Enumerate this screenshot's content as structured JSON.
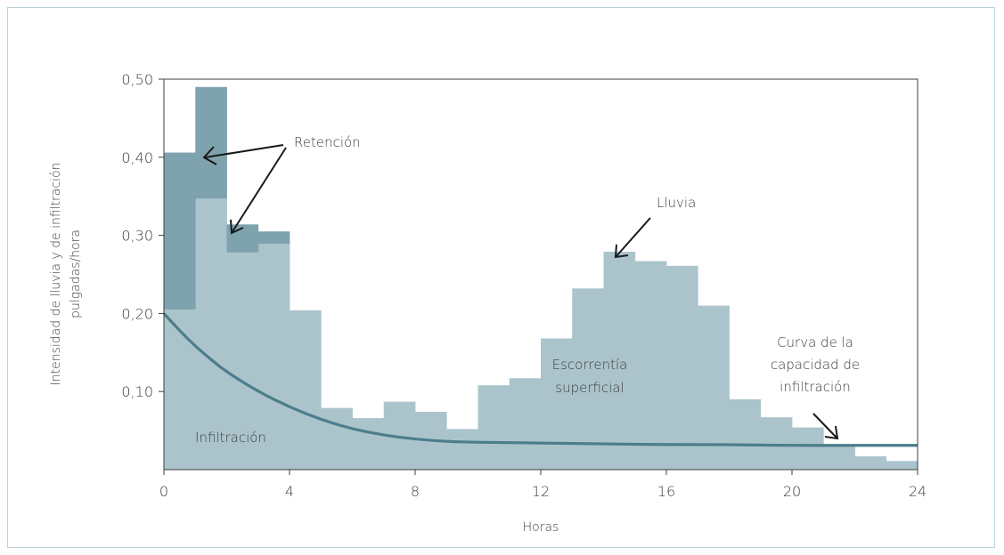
{
  "chart_data": {
    "type": "bar",
    "ylabel_line1": "Intensidad de lluvia y de infiltración",
    "ylabel_line2": "pulgadas/hora",
    "xlabel": "Horas",
    "xlim": [
      0,
      24
    ],
    "ylim": [
      0,
      0.5
    ],
    "x_ticks": [
      0,
      4,
      8,
      12,
      16,
      20,
      24
    ],
    "y_ticks": [
      {
        "value": 0.1,
        "label": "0,10"
      },
      {
        "value": 0.2,
        "label": "0,20"
      },
      {
        "value": 0.3,
        "label": "0,30"
      },
      {
        "value": 0.4,
        "label": "0,40"
      },
      {
        "value": 0.5,
        "label": "0,50"
      }
    ],
    "series": [
      {
        "name": "Lluvia",
        "bin_width": 1,
        "x_start": [
          0,
          1,
          2,
          3,
          4,
          5,
          6,
          7,
          8,
          9,
          10,
          11,
          12,
          13,
          14,
          15,
          16,
          17,
          18,
          19,
          20,
          21,
          22,
          23
        ],
        "values": [
          0.205,
          0.347,
          0.278,
          0.289,
          0.204,
          0.079,
          0.066,
          0.087,
          0.074,
          0.052,
          0.108,
          0.117,
          0.168,
          0.232,
          0.279,
          0.267,
          0.261,
          0.21,
          0.09,
          0.067,
          0.054,
          0.032,
          0.017,
          0.011
        ],
        "color": "#abc4cc"
      },
      {
        "name": "Retención",
        "bin_width": 1,
        "x_start": [
          0,
          1,
          2,
          3
        ],
        "base": [
          0.205,
          0.347,
          0.278,
          0.289
        ],
        "top": [
          0.406,
          0.49,
          0.314,
          0.305
        ],
        "color": "#7ea3af"
      }
    ],
    "infiltration_curve": {
      "name": "Curva de la capacidad de infiltración",
      "x": [
        0,
        0.5,
        1,
        1.5,
        2,
        3,
        4,
        5,
        6,
        7,
        8,
        9,
        10,
        12,
        14,
        16,
        18,
        20,
        22,
        24
      ],
      "y": [
        0.2,
        0.178,
        0.158,
        0.141,
        0.125,
        0.1,
        0.08,
        0.064,
        0.052,
        0.044,
        0.039,
        0.036,
        0.035,
        0.034,
        0.033,
        0.032,
        0.032,
        0.031,
        0.031,
        0.031
      ],
      "color": "#4d7d8c"
    },
    "annotations": {
      "retencion": "Retención",
      "lluvia": "Lluvia",
      "curva_line1": "Curva de la",
      "curva_line2": "capacidad de",
      "curva_line3": "infiltración",
      "escorrentia_line1": "Escorrentía",
      "escorrentia_line2": "superficial",
      "infiltracion": "Infiltración"
    }
  }
}
